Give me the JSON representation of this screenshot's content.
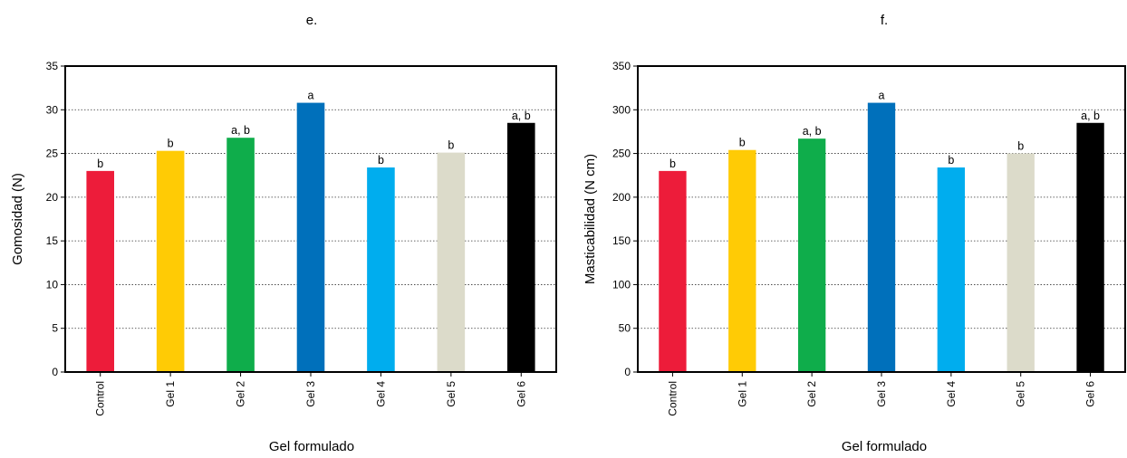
{
  "chart_data": [
    {
      "type": "bar",
      "panel": "e.",
      "xlabel": "Gel formulado",
      "ylabel": "Gomosidad (N)",
      "ylim": [
        0,
        35
      ],
      "yticks": [
        0,
        5,
        10,
        15,
        20,
        25,
        30,
        35
      ],
      "grid": true,
      "categories": [
        "Control",
        "Gel 1",
        "Gel 2",
        "Gel 3",
        "Gel 4",
        "Gel 5",
        "Gel 6"
      ],
      "values": [
        23.0,
        25.3,
        26.8,
        30.8,
        23.4,
        25.1,
        28.5
      ],
      "letters": [
        "b",
        "b",
        "a, b",
        "a",
        "b",
        "b",
        "a, b"
      ],
      "colors": [
        "#ed1c3a",
        "#ffcb05",
        "#0fad4b",
        "#0070bb",
        "#00adee",
        "#dcdbca",
        "#000000"
      ]
    },
    {
      "type": "bar",
      "panel": "f.",
      "xlabel": "Gel formulado",
      "ylabel": "Masticabilidad (N cm)",
      "ylim": [
        0,
        350
      ],
      "yticks": [
        0,
        50,
        100,
        150,
        200,
        250,
        300,
        350
      ],
      "grid": true,
      "categories": [
        "Control",
        "Gel 1",
        "Gel 2",
        "Gel 3",
        "Gel 4",
        "Gel 5",
        "Gel 6"
      ],
      "values": [
        230,
        254,
        267,
        308,
        234,
        250,
        285
      ],
      "letters": [
        "b",
        "b",
        "a, b",
        "a",
        "b",
        "b",
        "a, b"
      ],
      "colors": [
        "#ed1c3a",
        "#ffcb05",
        "#0fad4b",
        "#0070bb",
        "#00adee",
        "#dcdbca",
        "#000000"
      ]
    }
  ]
}
